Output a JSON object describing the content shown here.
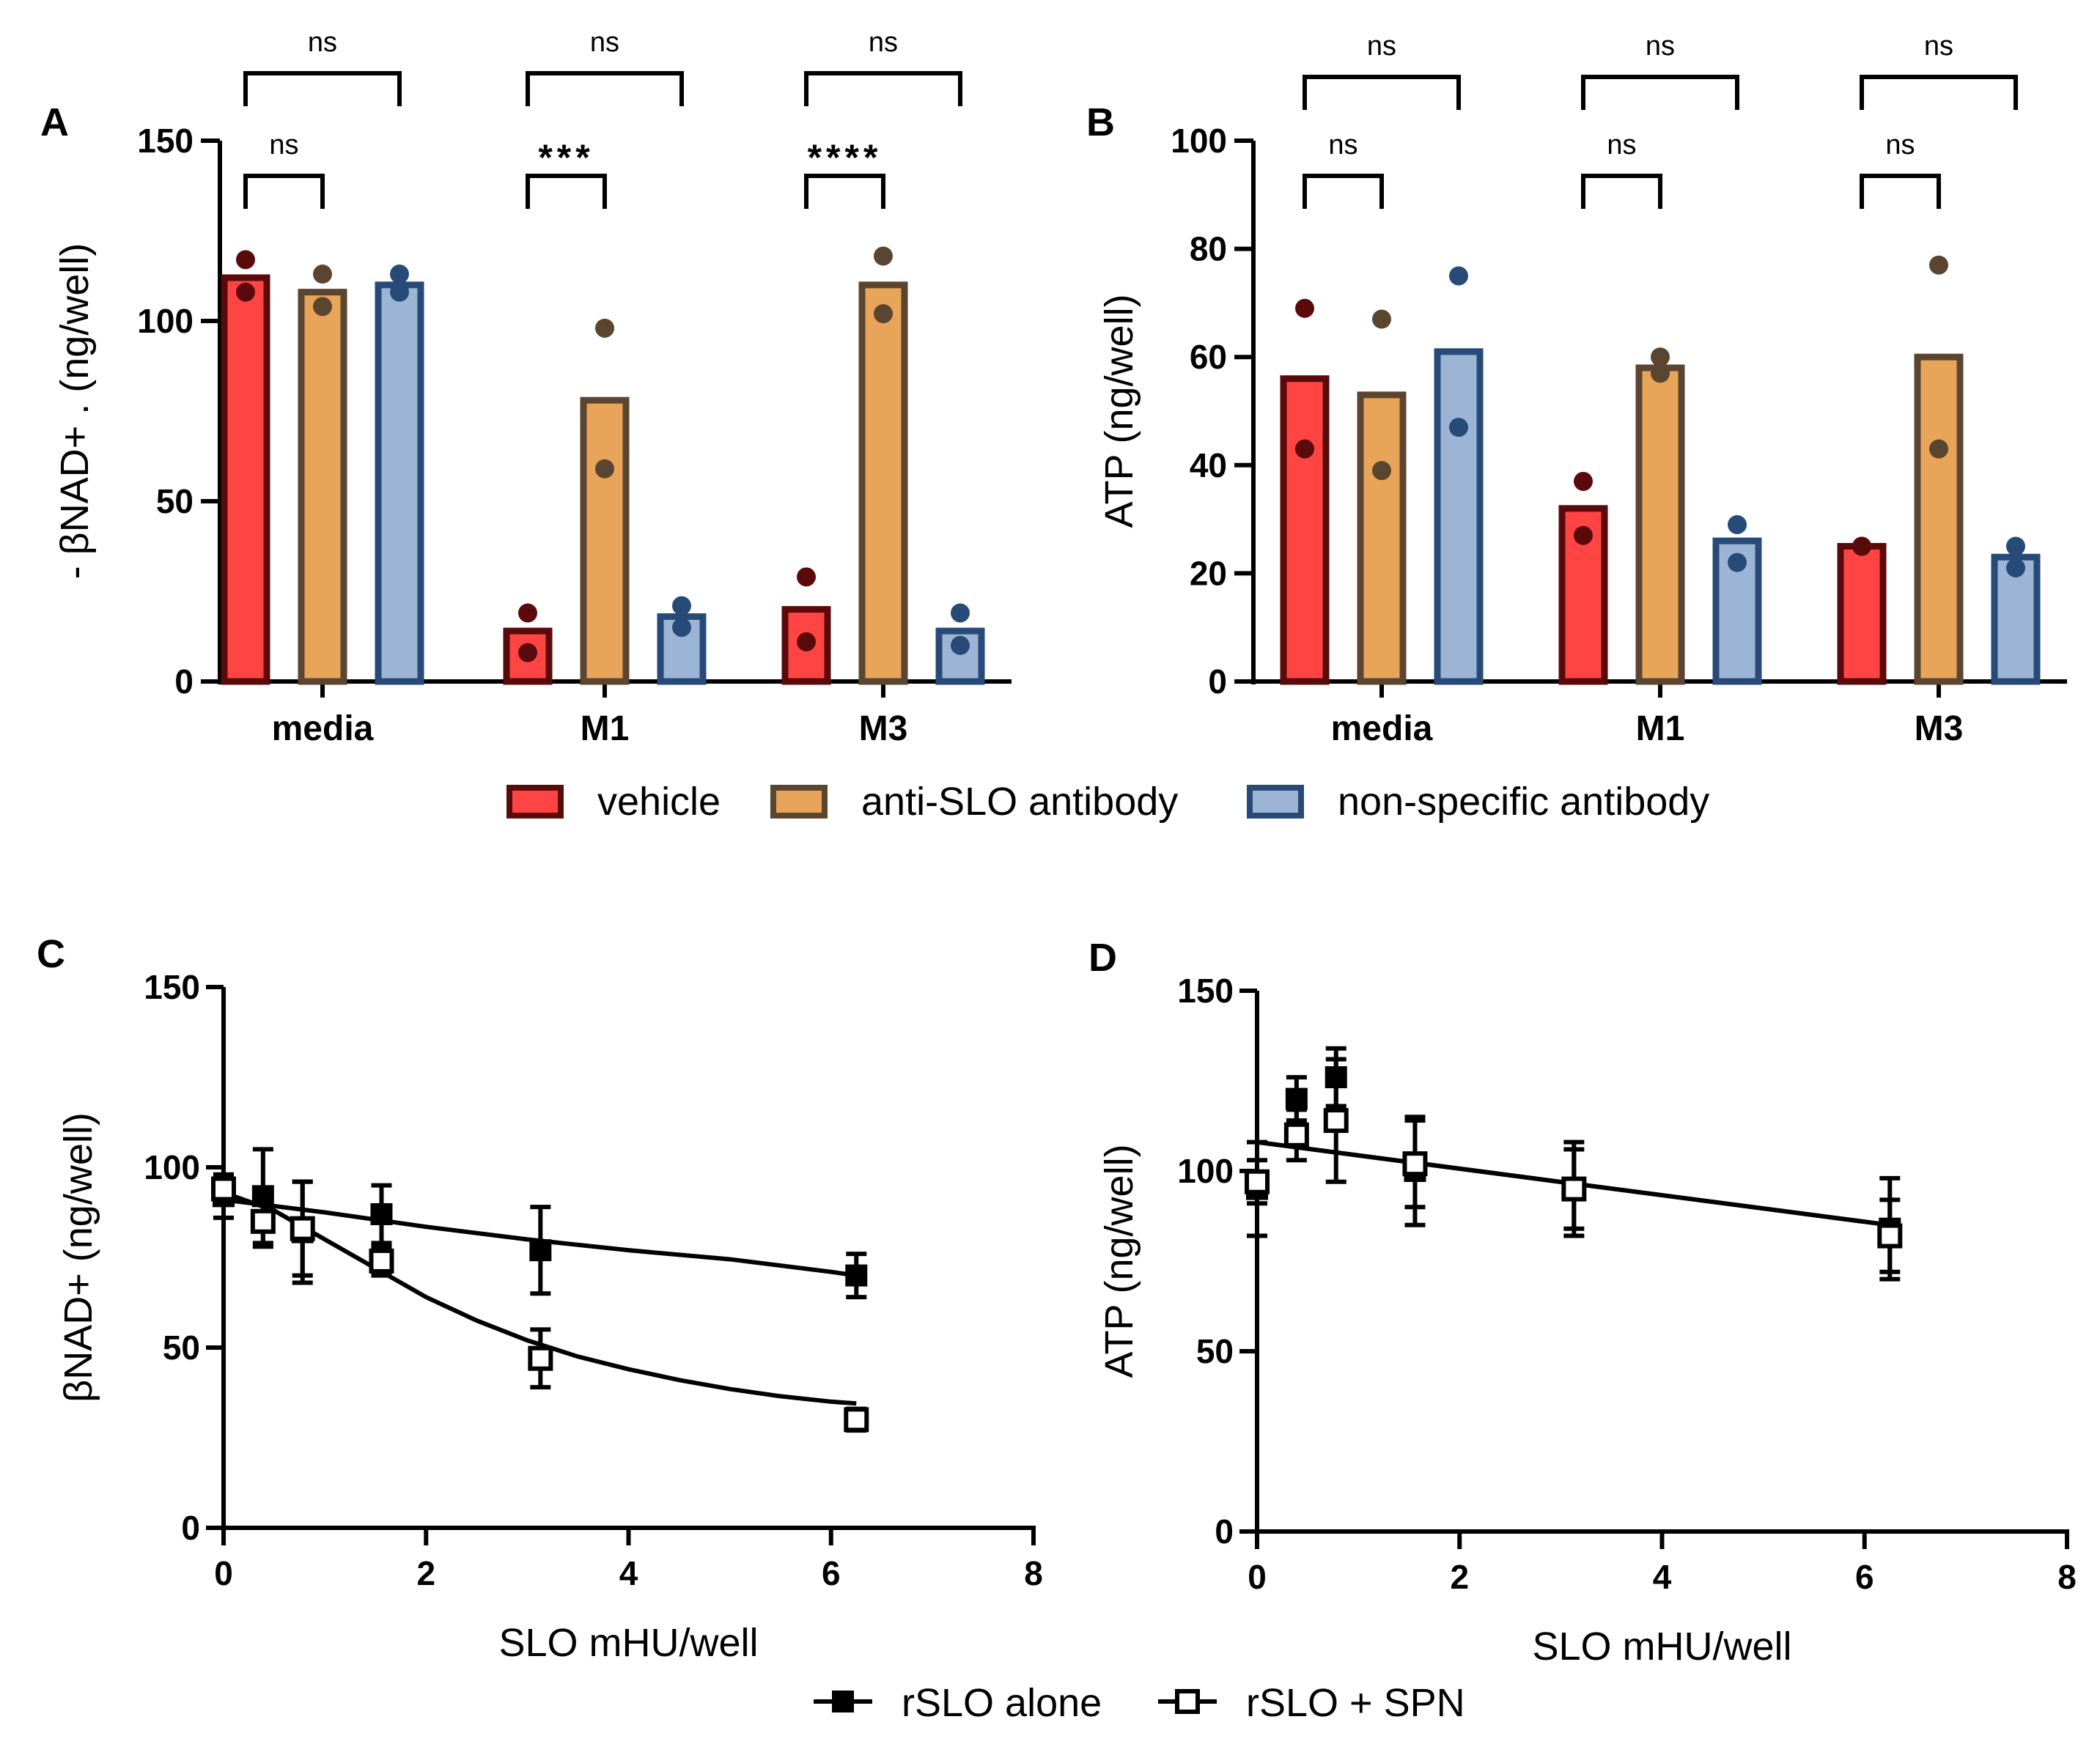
{
  "colors": {
    "vehicle_fill": "#ff4444",
    "vehicle_edge": "#5a0a0a",
    "anti_fill": "#e8a458",
    "anti_edge": "#5a4530",
    "nonspec_fill": "#9db5d4",
    "nonspec_edge": "#274a78",
    "ink": "#000000"
  },
  "legend_top": [
    {
      "label": "vehicle",
      "color_key": "vehicle"
    },
    {
      "label": "anti-SLO antibody",
      "color_key": "anti"
    },
    {
      "label": "non-specific antibody",
      "color_key": "nonspec"
    }
  ],
  "legend_bottom": [
    {
      "label": "rSLO alone",
      "marker": "filled-square"
    },
    {
      "label": "rSLO + SPN",
      "marker": "open-square"
    }
  ],
  "chart_data": [
    {
      "panel": "A",
      "type": "bar",
      "ylabel": "- βNAD+ . (ng/well)",
      "ylim": [
        0,
        150
      ],
      "yticks": [
        0,
        50,
        100,
        150
      ],
      "categories": [
        "media",
        "M1",
        "M3"
      ],
      "series": [
        {
          "name": "vehicle",
          "color_key": "vehicle",
          "values": [
            112,
            14,
            20
          ],
          "points": [
            [
              117,
              108
            ],
            [
              19,
              8
            ],
            [
              29,
              11
            ]
          ]
        },
        {
          "name": "anti-SLO antibody",
          "color_key": "anti",
          "values": [
            108,
            78,
            110
          ],
          "points": [
            [
              113,
              104
            ],
            [
              98,
              59
            ],
            [
              118,
              102
            ]
          ]
        },
        {
          "name": "non-specific antibody",
          "color_key": "nonspec",
          "values": [
            110,
            18,
            14
          ],
          "points": [
            [
              113,
              108
            ],
            [
              21,
              15
            ],
            [
              19,
              10
            ]
          ]
        }
      ],
      "significance": [
        {
          "category": "media",
          "pair": "vehicle-anti",
          "label": "ns"
        },
        {
          "category": "media",
          "pair": "vehicle-nonspec",
          "label": "ns"
        },
        {
          "category": "M1",
          "pair": "vehicle-anti",
          "label": "***"
        },
        {
          "category": "M1",
          "pair": "vehicle-nonspec",
          "label": "ns"
        },
        {
          "category": "M3",
          "pair": "vehicle-anti",
          "label": "****"
        },
        {
          "category": "M3",
          "pair": "vehicle-nonspec",
          "label": "ns"
        }
      ]
    },
    {
      "panel": "B",
      "type": "bar",
      "ylabel": "ATP (ng/well)",
      "ylim": [
        0,
        100
      ],
      "yticks": [
        0,
        20,
        40,
        60,
        80,
        100
      ],
      "categories": [
        "media",
        "M1",
        "M3"
      ],
      "series": [
        {
          "name": "vehicle",
          "color_key": "vehicle",
          "values": [
            56,
            32,
            25
          ],
          "points": [
            [
              69,
              43
            ],
            [
              37,
              27
            ],
            [
              25,
              25
            ]
          ]
        },
        {
          "name": "anti-SLO antibody",
          "color_key": "anti",
          "values": [
            53,
            58,
            60
          ],
          "points": [
            [
              67,
              39
            ],
            [
              57,
              60
            ],
            [
              77,
              43
            ]
          ]
        },
        {
          "name": "non-specific antibody",
          "color_key": "nonspec",
          "values": [
            61,
            26,
            23
          ],
          "points": [
            [
              75,
              47
            ],
            [
              29,
              22
            ],
            [
              25,
              21
            ]
          ]
        }
      ],
      "significance": [
        {
          "category": "media",
          "pair": "vehicle-anti",
          "label": "ns"
        },
        {
          "category": "media",
          "pair": "vehicle-nonspec",
          "label": "ns"
        },
        {
          "category": "M1",
          "pair": "vehicle-anti",
          "label": "ns"
        },
        {
          "category": "M1",
          "pair": "vehicle-nonspec",
          "label": "ns"
        },
        {
          "category": "M3",
          "pair": "vehicle-anti",
          "label": "ns"
        },
        {
          "category": "M3",
          "pair": "vehicle-nonspec",
          "label": "ns"
        }
      ]
    },
    {
      "panel": "C",
      "type": "scatter",
      "xlabel": "SLO mHU/well",
      "ylabel": "βNAD+ (ng/well)",
      "xlim": [
        0,
        8
      ],
      "ylim": [
        0,
        150
      ],
      "xticks": [
        0,
        2,
        4,
        6,
        8
      ],
      "yticks": [
        0,
        50,
        100,
        150
      ],
      "series": [
        {
          "name": "rSLO alone",
          "marker": "filled-square",
          "x": [
            0,
            0.39,
            0.78,
            1.56,
            3.13,
            6.25
          ],
          "y": [
            92,
            92,
            82,
            87,
            77,
            70
          ],
          "err": [
            6,
            13,
            14,
            8,
            12,
            6
          ],
          "fit_x": [
            0,
            1,
            2,
            3,
            4,
            5,
            6,
            6.25
          ],
          "fit_y": [
            91,
            87.5,
            83.5,
            80,
            77,
            74.5,
            71,
            70
          ]
        },
        {
          "name": "rSLO + SPN",
          "marker": "open-square",
          "x": [
            0,
            0.39,
            0.78,
            1.56,
            3.13,
            6.25
          ],
          "y": [
            94,
            85,
            83,
            74,
            47,
            30
          ],
          "err": [
            4,
            7,
            13,
            4,
            8,
            3
          ],
          "fit_x": [
            0,
            0.5,
            1,
            1.5,
            2,
            2.5,
            3,
            3.5,
            4,
            4.5,
            5,
            5.5,
            6,
            6.25
          ],
          "fit_y": [
            93,
            88,
            80,
            72,
            64,
            57.5,
            52,
            47.5,
            44,
            41,
            38.5,
            36.5,
            35,
            34.5
          ]
        }
      ]
    },
    {
      "panel": "D",
      "type": "scatter",
      "xlabel": "SLO mHU/well",
      "ylabel": "ATP (ng/well)",
      "xlim": [
        0,
        8
      ],
      "ylim": [
        0,
        150
      ],
      "xticks": [
        0,
        2,
        4,
        6,
        8
      ],
      "yticks": [
        0,
        50,
        100,
        150
      ],
      "series": [
        {
          "name": "rSLO alone",
          "marker": "filled-square",
          "x": [
            0,
            0.39,
            0.78,
            1.56,
            3.13,
            6.25
          ],
          "y": [
            95,
            120,
            126,
            100,
            95,
            84
          ],
          "err": [
            13,
            6,
            8,
            15,
            13,
            14
          ],
          "fit_x": [
            0,
            6.25
          ],
          "fit_y": [
            108,
            85
          ]
        },
        {
          "name": "rSLO + SPN",
          "marker": "open-square",
          "x": [
            0,
            0.39,
            0.78,
            1.56,
            3.13,
            6.25
          ],
          "y": [
            97,
            110,
            114,
            102,
            95,
            82
          ],
          "err": [
            6,
            7,
            17,
            12,
            11,
            10
          ],
          "fit_x": [
            0,
            6.25
          ],
          "fit_y": [
            108,
            85
          ]
        }
      ]
    }
  ]
}
